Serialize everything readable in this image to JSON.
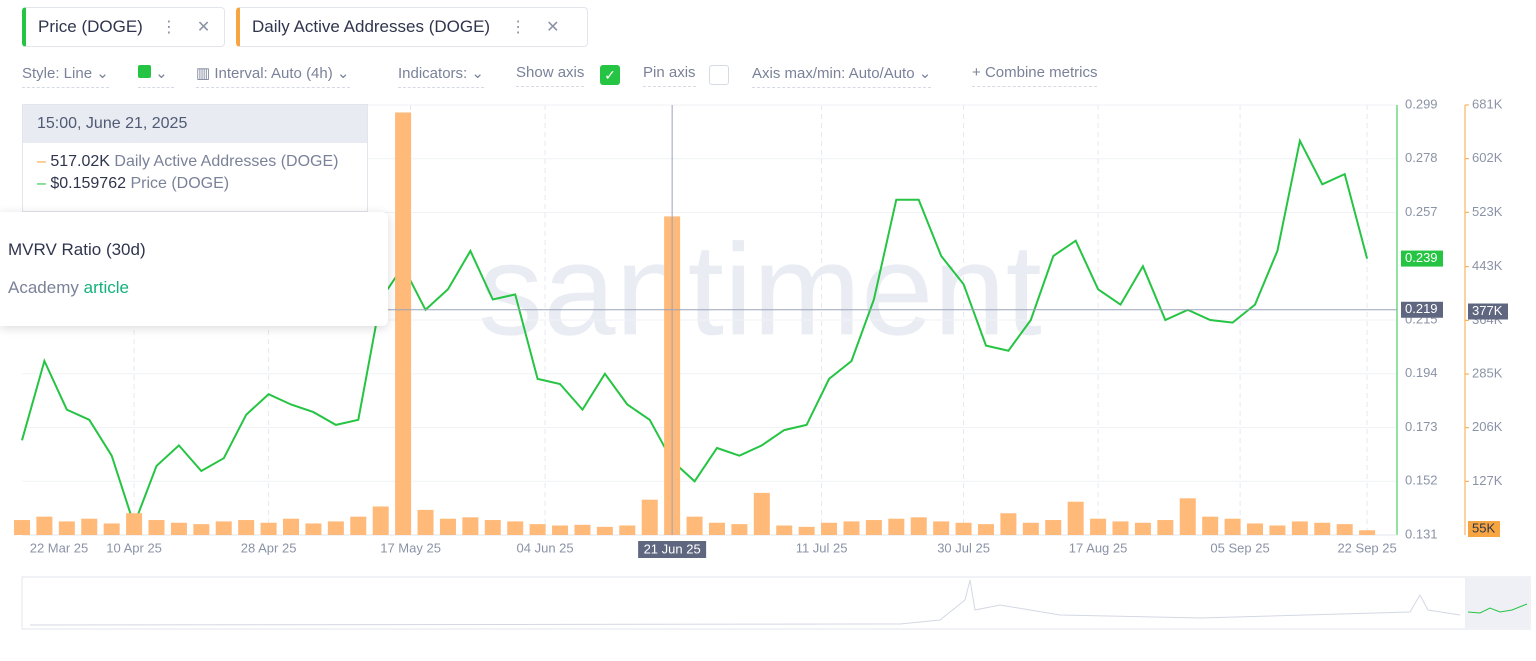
{
  "tabs": [
    {
      "label": "Price (DOGE)"
    },
    {
      "label": "Daily Active Addresses (DOGE)"
    }
  ],
  "toolbar": {
    "style": "Style: Line",
    "interval": "Interval: Auto (4h)",
    "indicators": "Indicators:",
    "show_axis": "Show axis",
    "pin_axis": "Pin axis",
    "axis_maxmin": "Axis max/min: Auto/Auto",
    "combine": "Combine metrics"
  },
  "tooltip": {
    "time": "15:00, June 21, 2025",
    "rows": [
      {
        "value": "517.02K",
        "name": "Daily Active Addresses (DOGE)"
      },
      {
        "value": "$0.159762",
        "name": "Price (DOGE)"
      }
    ]
  },
  "popup": {
    "title": "MVRV Ratio (30d)",
    "text": "Academy",
    "link": "article"
  },
  "chart_data": {
    "type": "line-bar",
    "watermark": "santiment",
    "x": [
      "2025-03-26",
      "2025-03-29",
      "2025-04-01",
      "2025-04-04",
      "2025-04-07",
      "2025-04-10",
      "2025-04-13",
      "2025-04-16",
      "2025-04-19",
      "2025-04-22",
      "2025-04-25",
      "2025-04-28",
      "2025-05-01",
      "2025-05-04",
      "2025-05-07",
      "2025-05-10",
      "2025-05-13",
      "2025-05-16",
      "2025-05-19",
      "2025-05-22",
      "2025-05-25",
      "2025-05-28",
      "2025-05-31",
      "2025-06-03",
      "2025-06-06",
      "2025-06-09",
      "2025-06-12",
      "2025-06-15",
      "2025-06-18",
      "2025-06-21",
      "2025-06-24",
      "2025-06-27",
      "2025-06-30",
      "2025-07-03",
      "2025-07-06",
      "2025-07-09",
      "2025-07-12",
      "2025-07-15",
      "2025-07-18",
      "2025-07-21",
      "2025-07-24",
      "2025-07-27",
      "2025-07-30",
      "2025-08-02",
      "2025-08-05",
      "2025-08-08",
      "2025-08-11",
      "2025-08-14",
      "2025-08-17",
      "2025-08-20",
      "2025-08-23",
      "2025-08-26",
      "2025-08-29",
      "2025-09-01",
      "2025-09-04",
      "2025-09-07",
      "2025-09-10",
      "2025-09-13",
      "2025-09-16",
      "2025-09-19",
      "2025-09-22"
    ],
    "xlim": [
      "2025-03-26",
      "2025-09-26"
    ],
    "xticks": [
      {
        "value": "2025-03-22",
        "label": "22 Mar 25"
      },
      {
        "value": "2025-04-10",
        "label": "10 Apr 25"
      },
      {
        "value": "2025-04-28",
        "label": "28 Apr 25"
      },
      {
        "value": "2025-05-17",
        "label": "17 May 25"
      },
      {
        "value": "2025-06-04",
        "label": "04 Jun 25"
      },
      {
        "value": "2025-07-11",
        "label": "11 Jul 25"
      },
      {
        "value": "2025-07-30",
        "label": "30 Jul 25"
      },
      {
        "value": "2025-08-17",
        "label": "17 Aug 25"
      },
      {
        "value": "2025-09-05",
        "label": "05 Sep 25"
      },
      {
        "value": "2025-09-22",
        "label": "22 Sep 25"
      }
    ],
    "series": [
      {
        "name": "Price (DOGE)",
        "color": "#26c443",
        "kind": "line",
        "values": [
          0.168,
          0.199,
          0.18,
          0.176,
          0.162,
          0.135,
          0.158,
          0.166,
          0.156,
          0.161,
          0.178,
          0.186,
          0.182,
          0.179,
          0.174,
          0.176,
          0.223,
          0.236,
          0.219,
          0.227,
          0.242,
          0.223,
          0.225,
          0.192,
          0.19,
          0.18,
          0.194,
          0.182,
          0.176,
          0.16,
          0.152,
          0.165,
          0.162,
          0.166,
          0.172,
          0.174,
          0.192,
          0.199,
          0.223,
          0.262,
          0.262,
          0.24,
          0.229,
          0.205,
          0.203,
          0.215,
          0.24,
          0.246,
          0.227,
          0.221,
          0.236,
          0.215,
          0.219,
          0.215,
          0.214,
          0.221,
          0.242,
          0.285,
          0.268,
          0.272,
          0.239
        ]
      },
      {
        "name": "Daily Active Addresses (DOGE)",
        "color": "#ffb978",
        "kind": "bar",
        "axis": "y2",
        "values": [
          70000,
          75000,
          68000,
          72000,
          65000,
          80000,
          70000,
          66000,
          64000,
          68000,
          70000,
          66000,
          72000,
          65000,
          68000,
          75000,
          90000,
          670000,
          85000,
          72000,
          74000,
          70000,
          68000,
          64000,
          62000,
          63000,
          60000,
          62000,
          100000,
          517000,
          75000,
          66000,
          64000,
          110000,
          62000,
          60000,
          66000,
          68000,
          70000,
          72000,
          74000,
          68000,
          66000,
          64000,
          80000,
          66000,
          70000,
          97000,
          72000,
          68000,
          66000,
          70000,
          102000,
          75000,
          72000,
          65000,
          62000,
          68000,
          66000,
          64000,
          55000
        ]
      }
    ],
    "ylim": [
      0.131,
      0.299
    ],
    "yticks": [
      0.131,
      0.152,
      0.173,
      0.194,
      0.215,
      0.257,
      0.278,
      0.299
    ],
    "y2lim": [
      48000,
      681000
    ],
    "y2ticks": [
      {
        "value": 127000,
        "label": "127K"
      },
      {
        "value": 206000,
        "label": "206K"
      },
      {
        "value": 285000,
        "label": "285K"
      },
      {
        "value": 364000,
        "label": "364K"
      },
      {
        "value": 443000,
        "label": "443K"
      },
      {
        "value": 523000,
        "label": "523K"
      },
      {
        "value": 602000,
        "label": "602K"
      },
      {
        "value": 681000,
        "label": "681K"
      }
    ],
    "last_price": 0.239,
    "last_y2": {
      "value": 55000,
      "label": "55K"
    },
    "crosshair": {
      "x": "2025-06-21",
      "x_label": "21 Jun 25",
      "y": 0.219,
      "y2": {
        "value": 377000,
        "label": "377K"
      }
    },
    "grid": true
  }
}
